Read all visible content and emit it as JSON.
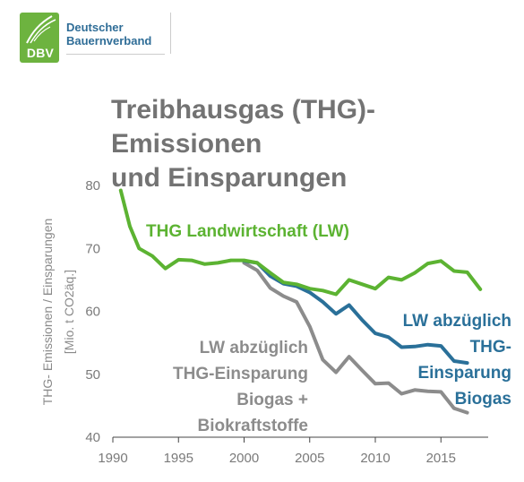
{
  "logo": {
    "abbr": "DBV",
    "line1": "Deutscher",
    "line2": "Bauernverband"
  },
  "title_line1": "Treibhausgas (THG)-Emissionen",
  "title_line2": "und Einsparungen",
  "colors": {
    "green": "#5cb332",
    "blue": "#2a7099",
    "gray": "#8c8c8c",
    "title": "#737373",
    "logo": "#6db33f"
  },
  "chart_data": {
    "type": "line",
    "xlim": [
      1990,
      2018.6
    ],
    "ylim": [
      40,
      80
    ],
    "xticks": [
      1990,
      1995,
      2000,
      2005,
      2010,
      2015
    ],
    "yticks": [
      40,
      50,
      60,
      70,
      80
    ],
    "ylabel_line1": "THG- Emissionen / Einsparungen",
    "ylabel_line2": "[Mio. t CO2äq.]",
    "grid": false,
    "series": [
      {
        "name": "THG Landwirtschaft (LW)",
        "color": "#5cb332",
        "x": [
          1990.6,
          1991.3,
          1992,
          1993,
          1994,
          1995,
          1996,
          1997,
          1998,
          1999,
          2000,
          2001,
          2002,
          2003,
          2004,
          2005,
          2006,
          2007,
          2008,
          2009,
          2010,
          2011,
          2012,
          2013,
          2014,
          2015,
          2016,
          2017,
          2018
        ],
        "y": [
          79.2,
          73.5,
          70.0,
          68.8,
          66.8,
          68.2,
          68.1,
          67.5,
          67.7,
          68.1,
          68.1,
          67.7,
          66.1,
          64.6,
          64.3,
          63.6,
          63.3,
          62.7,
          65.0,
          64.3,
          63.6,
          65.4,
          65.0,
          66.1,
          67.6,
          68.0,
          66.4,
          66.2,
          63.5
        ]
      },
      {
        "name": "LW abzüglich THG-Einsparung Biogas",
        "color": "#2a7099",
        "x": [
          2000,
          2001,
          2002,
          2003,
          2004,
          2005,
          2006,
          2007,
          2008,
          2009,
          2010,
          2011,
          2012,
          2013,
          2014,
          2015,
          2016,
          2017
        ],
        "y": [
          68.0,
          67.7,
          65.6,
          64.4,
          64.0,
          63.0,
          61.5,
          59.6,
          61.0,
          58.6,
          56.5,
          55.9,
          54.3,
          54.4,
          54.7,
          54.5,
          52.1,
          51.8
        ]
      },
      {
        "name": "LW abzüglich THG-Einsparung Biogas + Biokraftstoffe",
        "color": "#8c8c8c",
        "x": [
          2000,
          2001,
          2002,
          2003,
          2004,
          2005,
          2006,
          2007,
          2008,
          2009,
          2010,
          2011,
          2012,
          2013,
          2014,
          2015,
          2016,
          2017
        ],
        "y": [
          67.7,
          66.5,
          63.7,
          62.4,
          61.5,
          57.6,
          52.3,
          50.3,
          52.8,
          50.6,
          48.5,
          48.6,
          46.9,
          47.5,
          47.3,
          47.2,
          44.6,
          43.9
        ]
      }
    ],
    "annotations": {
      "green": "THG Landwirtschaft (LW)",
      "blue": [
        "LW abzüglich",
        "THG-",
        "Einsparung",
        "Biogas"
      ],
      "gray": [
        "LW abzüglich",
        "THG-Einsparung",
        "Biogas +",
        "Biokraftstoffe"
      ]
    }
  }
}
